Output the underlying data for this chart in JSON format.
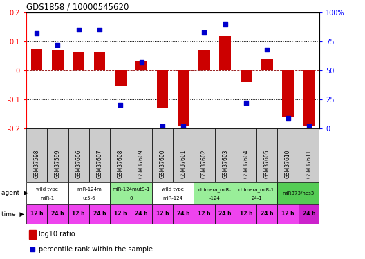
{
  "title": "GDS1858 / 10000545620",
  "samples": [
    "GSM37598",
    "GSM37599",
    "GSM37606",
    "GSM37607",
    "GSM37608",
    "GSM37609",
    "GSM37600",
    "GSM37601",
    "GSM37602",
    "GSM37603",
    "GSM37604",
    "GSM37605",
    "GSM37610",
    "GSM37611"
  ],
  "log10_ratio": [
    0.075,
    0.07,
    0.065,
    0.065,
    -0.055,
    0.03,
    -0.13,
    -0.19,
    0.072,
    0.12,
    -0.04,
    0.04,
    -0.16,
    -0.19
  ],
  "percentile_rank": [
    82,
    72,
    85,
    85,
    20,
    57,
    2,
    2,
    83,
    90,
    22,
    68,
    9,
    2
  ],
  "ylim": [
    -0.2,
    0.2
  ],
  "yticks": [
    -0.2,
    -0.1,
    0.0,
    0.1,
    0.2
  ],
  "ytick_labels": [
    "-0.2",
    "-0.1",
    "0",
    "0.1",
    "0.2"
  ],
  "y2tick_labels": [
    "0",
    "25",
    "50",
    "75",
    "100%"
  ],
  "bar_color": "#cc0000",
  "dot_color": "#0000cc",
  "dot_size": 22,
  "agent_groups": [
    {
      "label": "wild type\nmiR-1",
      "count": 2,
      "color": "#ffffff"
    },
    {
      "label": "miR-124m\nut5-6",
      "count": 2,
      "color": "#ffffff"
    },
    {
      "label": "miR-124mut9-1\n0",
      "count": 2,
      "color": "#99ee99"
    },
    {
      "label": "wild type\nmiR-124",
      "count": 2,
      "color": "#ffffff"
    },
    {
      "label": "chimera_miR-\n-124",
      "count": 2,
      "color": "#99ee99"
    },
    {
      "label": "chimera_miR-1\n24-1",
      "count": 2,
      "color": "#99ee99"
    },
    {
      "label": "miR373/hes3",
      "count": 2,
      "color": "#55cc55"
    }
  ],
  "time_labels": [
    "12 h",
    "24 h",
    "12 h",
    "24 h",
    "12 h",
    "24 h",
    "12 h",
    "24 h",
    "12 h",
    "24 h",
    "12 h",
    "24 h",
    "12 h",
    "24 h"
  ],
  "time_bg": "#ee44ee",
  "time_last_bg": "#cc22cc"
}
